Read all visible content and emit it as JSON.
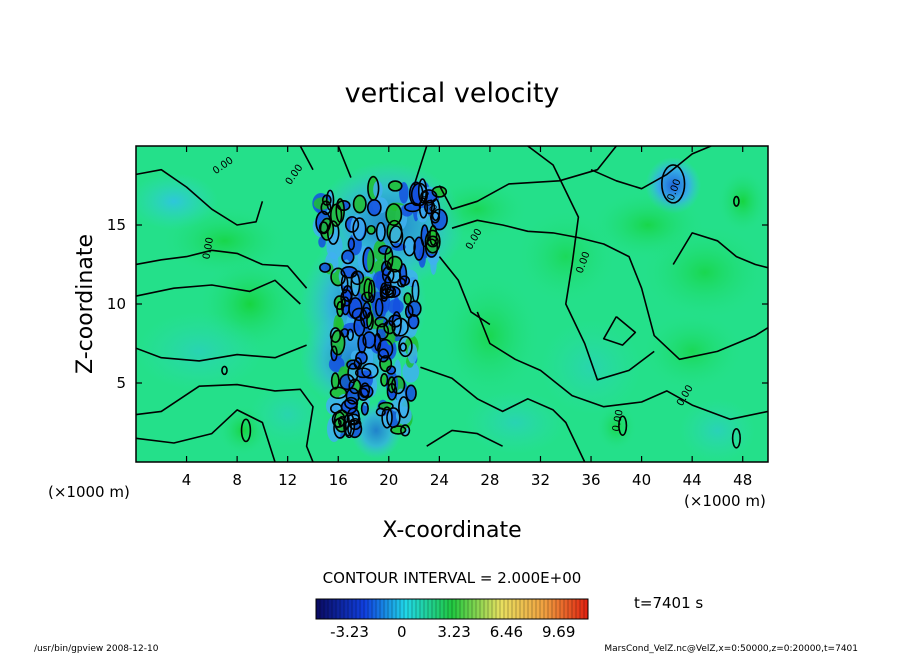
{
  "chart_data": {
    "type": "heatmap",
    "title": "vertical velocity",
    "xlabel": "X-coordinate",
    "ylabel": "Z-coordinate",
    "x_unit": "(×1000 m)",
    "xlim": [
      0,
      50
    ],
    "ylim": [
      0,
      20
    ],
    "x_ticks": [
      "4",
      "8",
      "12",
      "16",
      "20",
      "24",
      "28",
      "32",
      "36",
      "40",
      "44",
      "48"
    ],
    "y_ticks": [
      "5",
      "10",
      "15"
    ],
    "contour_interval": "CONTOUR INTERVAL = 2.000E+00",
    "contour_labels": [
      "0.00",
      "0.00",
      "0.00",
      "0.00",
      "0.00",
      "0.00",
      "0.00",
      "0.00",
      "0.00"
    ],
    "colorbar": {
      "ticks": [
        "-3.23",
        "0",
        "3.23",
        "6.46",
        "9.69"
      ],
      "tick_values": [
        -3.23,
        0,
        3.23,
        6.46,
        9.69
      ],
      "range": [
        -5.3,
        11.5
      ]
    },
    "time_label": "t=7401 s",
    "colors": {
      "background_field": "#22e082",
      "positive": "#22d84a",
      "negative": "#1a8cff",
      "strong_negative": "#1030c8",
      "contour_line": "#000000"
    }
  },
  "footer": {
    "left": "/usr/bin/gpview   2008-12-10",
    "right": "MarsCond_VelZ.nc@VelZ,x=0:50000,z=0:20000,t=7401"
  }
}
